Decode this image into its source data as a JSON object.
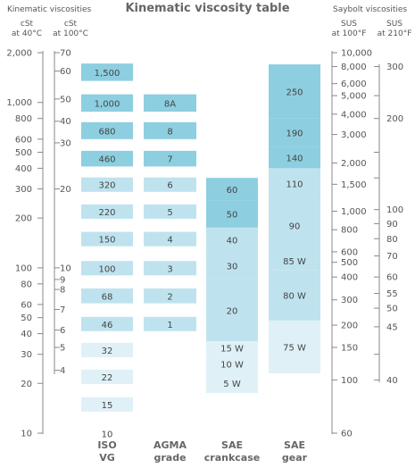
{
  "title": "Kinematic viscosity table",
  "headers": {
    "kinematic": "Kinematic viscosities",
    "saybolt": "Saybolt viscosities",
    "cst40": [
      "cSt",
      "at 40°C"
    ],
    "cst100": [
      "cSt",
      "at 100°C"
    ],
    "sus100": [
      "SUS",
      "at 100°F"
    ],
    "sus210": [
      "SUS",
      "at 210°F"
    ]
  },
  "colors": {
    "dark": "#8dcfe0",
    "medium": "#bfe3ee",
    "light": "#dff1f7",
    "axis": "#888888",
    "text": "#555555",
    "label": "#666666"
  },
  "chart_data": {
    "type": "table",
    "scale": "log",
    "cst40_ticks": [
      {
        "label": "2,000",
        "value": 2000
      },
      {
        "label": "1,000",
        "value": 1000
      },
      {
        "label": "800",
        "value": 800
      },
      {
        "label": "600",
        "value": 600
      },
      {
        "label": "500",
        "value": 500
      },
      {
        "label": "400",
        "value": 400
      },
      {
        "label": "300",
        "value": 300
      },
      {
        "label": "200",
        "value": 200
      },
      {
        "label": "100",
        "value": 100
      },
      {
        "label": "80",
        "value": 80
      },
      {
        "label": "60",
        "value": 60
      },
      {
        "label": "50",
        "value": 50
      },
      {
        "label": "40",
        "value": 40
      },
      {
        "label": "30",
        "value": 30
      },
      {
        "label": "20",
        "value": 20
      },
      {
        "label": "10",
        "value": 10
      }
    ],
    "cst100_ticks": [
      {
        "label": "70",
        "value": 2000
      },
      {
        "label": "60",
        "value": 1550
      },
      {
        "label": "50",
        "value": 1050
      },
      {
        "label": "40",
        "value": 770
      },
      {
        "label": "30",
        "value": 570
      },
      {
        "label": "20",
        "value": 300
      },
      {
        "label": "10",
        "value": 100
      },
      {
        "label": "9",
        "value": 85
      },
      {
        "label": "8",
        "value": 74
      },
      {
        "label": "7",
        "value": 56
      },
      {
        "label": "6",
        "value": 42
      },
      {
        "label": "5",
        "value": 33
      },
      {
        "label": "4",
        "value": 24
      }
    ],
    "sus100_ticks": [
      {
        "label": "10,000",
        "value": 2000
      },
      {
        "label": "8,000",
        "value": 1650
      },
      {
        "label": "6,000",
        "value": 1300
      },
      {
        "label": "5,000",
        "value": 1100
      },
      {
        "label": "4,000",
        "value": 850
      },
      {
        "label": "3,000",
        "value": 640
      },
      {
        "label": "2,000",
        "value": 430
      },
      {
        "label": "1,500",
        "value": 320
      },
      {
        "label": "1,000",
        "value": 220
      },
      {
        "label": "800",
        "value": 170
      },
      {
        "label": "600",
        "value": 125
      },
      {
        "label": "500",
        "value": 108
      },
      {
        "label": "400",
        "value": 88
      },
      {
        "label": "300",
        "value": 64
      },
      {
        "label": "200",
        "value": 45
      },
      {
        "label": "150",
        "value": 33
      },
      {
        "label": "100",
        "value": 21
      },
      {
        "label": "60",
        "value": 10
      }
    ],
    "sus210_ticks": [
      {
        "label": "300",
        "value": 1650
      },
      {
        "label": "200",
        "value": 800
      },
      {
        "label": "100",
        "value": 225
      },
      {
        "label": "90",
        "value": 185
      },
      {
        "label": "80",
        "value": 150
      },
      {
        "label": "70",
        "value": 118
      },
      {
        "label": "60",
        "value": 88
      },
      {
        "label": "55",
        "value": 70
      },
      {
        "label": "50",
        "value": 57
      },
      {
        "label": "45",
        "value": 44
      },
      {
        "label": "40",
        "value": 21
      }
    ],
    "columns": [
      {
        "name": [
          "ISO",
          "VG"
        ],
        "blocks": [
          {
            "label": "1,500",
            "top": 1720,
            "bottom": 1350,
            "shade": "dark"
          },
          {
            "label": "1,000",
            "top": 1120,
            "bottom": 880,
            "shade": "dark"
          },
          {
            "label": "680",
            "top": 760,
            "bottom": 600,
            "shade": "dark"
          },
          {
            "label": "460",
            "top": 510,
            "bottom": 410,
            "shade": "dark"
          },
          {
            "label": "320",
            "top": 352,
            "bottom": 288,
            "shade": "medium"
          },
          {
            "label": "220",
            "top": 242,
            "bottom": 198,
            "shade": "medium"
          },
          {
            "label": "150",
            "top": 165,
            "bottom": 135,
            "shade": "medium"
          },
          {
            "label": "100",
            "top": 110,
            "bottom": 90,
            "shade": "medium"
          },
          {
            "label": "68",
            "top": 75,
            "bottom": 61,
            "shade": "medium"
          },
          {
            "label": "46",
            "top": 50.5,
            "bottom": 41.4,
            "shade": "medium"
          },
          {
            "label": "32",
            "top": 35.2,
            "bottom": 28.8,
            "shade": "light"
          },
          {
            "label": "22",
            "top": 24.2,
            "bottom": 19.8,
            "shade": "light"
          },
          {
            "label": "15",
            "top": 16.5,
            "bottom": 13.5,
            "shade": "light"
          },
          {
            "label": "10",
            "top": 11,
            "bottom": 9
          }
        ]
      },
      {
        "name": [
          "AGMA",
          "grade"
        ],
        "blocks": [
          {
            "label": "8A",
            "top": 1120,
            "bottom": 880,
            "shade": "dark"
          },
          {
            "label": "8",
            "top": 760,
            "bottom": 600,
            "shade": "dark"
          },
          {
            "label": "7",
            "top": 510,
            "bottom": 410,
            "shade": "dark"
          },
          {
            "label": "6",
            "top": 352,
            "bottom": 288,
            "shade": "medium"
          },
          {
            "label": "5",
            "top": 242,
            "bottom": 198,
            "shade": "medium"
          },
          {
            "label": "4",
            "top": 165,
            "bottom": 135,
            "shade": "medium"
          },
          {
            "label": "3",
            "top": 110,
            "bottom": 90,
            "shade": "medium"
          },
          {
            "label": "2",
            "top": 75,
            "bottom": 61,
            "shade": "medium"
          },
          {
            "label": "1",
            "top": 50.5,
            "bottom": 41.4,
            "shade": "medium"
          }
        ]
      },
      {
        "name": [
          "SAE",
          "crankcase"
        ],
        "blocks": [
          {
            "label": "60",
            "top": 350,
            "bottom": 255,
            "shade": "dark"
          },
          {
            "label": "50",
            "top": 255,
            "bottom": 175,
            "shade": "dark"
          },
          {
            "label": "40",
            "top": 175,
            "bottom": 125,
            "shade": "medium"
          },
          {
            "label": "30",
            "top": 125,
            "bottom": 85,
            "shade": "medium"
          },
          {
            "label": "20",
            "top": 85,
            "bottom": 36,
            "shade": "medium"
          },
          {
            "label": "15 W",
            "top": 36,
            "bottom": 30,
            "shade": "light"
          },
          {
            "label": "10 W",
            "top": 30,
            "bottom": 23,
            "shade": "light"
          },
          {
            "label": "5 W",
            "top": 23,
            "bottom": 17.5,
            "shade": "light"
          }
        ]
      },
      {
        "name": [
          "SAE",
          "gear"
        ],
        "blocks": [
          {
            "label": "250",
            "top": 1700,
            "bottom": 800,
            "shade": "dark"
          },
          {
            "label": "190",
            "top": 800,
            "bottom": 540,
            "shade": "dark"
          },
          {
            "label": "140",
            "top": 540,
            "bottom": 400,
            "shade": "dark"
          },
          {
            "label": "110",
            "top": 400,
            "bottom": 260,
            "shade": "medium"
          },
          {
            "label": "90",
            "top": 260,
            "bottom": 125,
            "shade": "medium"
          },
          {
            "label": "85 W",
            "top": 125,
            "bottom": 97,
            "shade": "medium"
          },
          {
            "label": "80 W",
            "top": 97,
            "bottom": 48,
            "shade": "medium"
          },
          {
            "label": "75 W",
            "top": 48,
            "bottom": 23,
            "shade": "light"
          }
        ]
      }
    ]
  }
}
